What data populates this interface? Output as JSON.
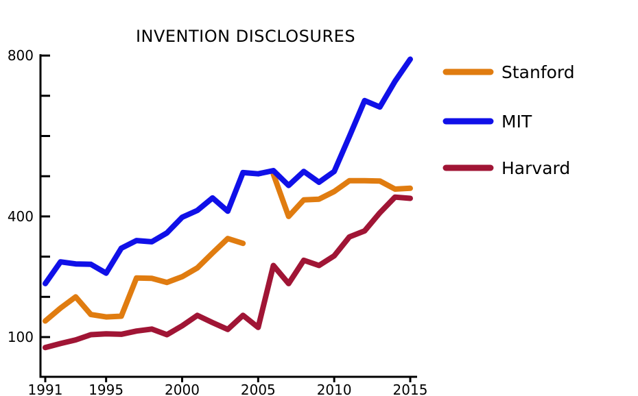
{
  "chart_data": {
    "type": "line",
    "title": "INVENTION DISCLOSURES",
    "xlabel": "",
    "ylabel": "",
    "xlim": [
      1991,
      2015
    ],
    "ylim": [
      75,
      800
    ],
    "x_ticks": [
      1991,
      1995,
      2000,
      2005,
      2010,
      2015
    ],
    "y_ticks_labeled": [
      100,
      400,
      800
    ],
    "y_ticks_minor": [
      200,
      300,
      500,
      600,
      700
    ],
    "grid": false,
    "legend_position": "right",
    "series": [
      {
        "name": "Stanford",
        "color": "#e07c10",
        "segments": [
          {
            "x": [
              1991,
              1992,
              1993,
              1994,
              1995,
              1996,
              1997,
              1998,
              1999,
              2000,
              2001,
              2002,
              2003,
              2004
            ],
            "y": [
              140,
              172,
              200,
              156,
              150,
              152,
              247,
              246,
              236,
              250,
              272,
              309,
              345,
              333
            ]
          },
          {
            "x": [
              2006,
              2007,
              2008,
              2009,
              2010,
              2011,
              2012,
              2013,
              2014,
              2015
            ],
            "y": [
              505,
              400,
              441,
              443,
              462,
              489,
              489,
              488,
              468,
              470
            ]
          }
        ]
      },
      {
        "name": "MIT",
        "color": "#1010e8",
        "segments": [
          {
            "x": [
              1991,
              1992,
              1993,
              1994,
              1995,
              1996,
              1997,
              1998,
              1999,
              2000,
              2001,
              2002,
              2003,
              2004,
              2005,
              2006,
              2007,
              2008,
              2009,
              2010,
              2011,
              2012,
              2013,
              2014,
              2015
            ],
            "y": [
              233,
              287,
              282,
              281,
              259,
              321,
              340,
              337,
              359,
              398,
              415,
              446,
              413,
              509,
              506,
              514,
              477,
              512,
              485,
              512,
              599,
              688,
              672,
              736,
              791
            ]
          }
        ]
      },
      {
        "name": "Harvard",
        "color": "#a01535",
        "segments": [
          {
            "x": [
              1991,
              1992,
              1993,
              1994,
              1995,
              1996,
              1997,
              1998,
              1999,
              2000,
              2001,
              2002,
              2003,
              2004,
              2005,
              2006,
              2007,
              2008,
              2009,
              2010,
              2011,
              2012,
              2013,
              2014,
              2015
            ],
            "y": [
              74,
              84,
              93,
              106,
              108,
              107,
              115,
              120,
              106,
              128,
              154,
              136,
              119,
              154,
              124,
              278,
              233,
              291,
              278,
              302,
              349,
              364,
              409,
              448,
              445
            ]
          }
        ]
      }
    ]
  }
}
